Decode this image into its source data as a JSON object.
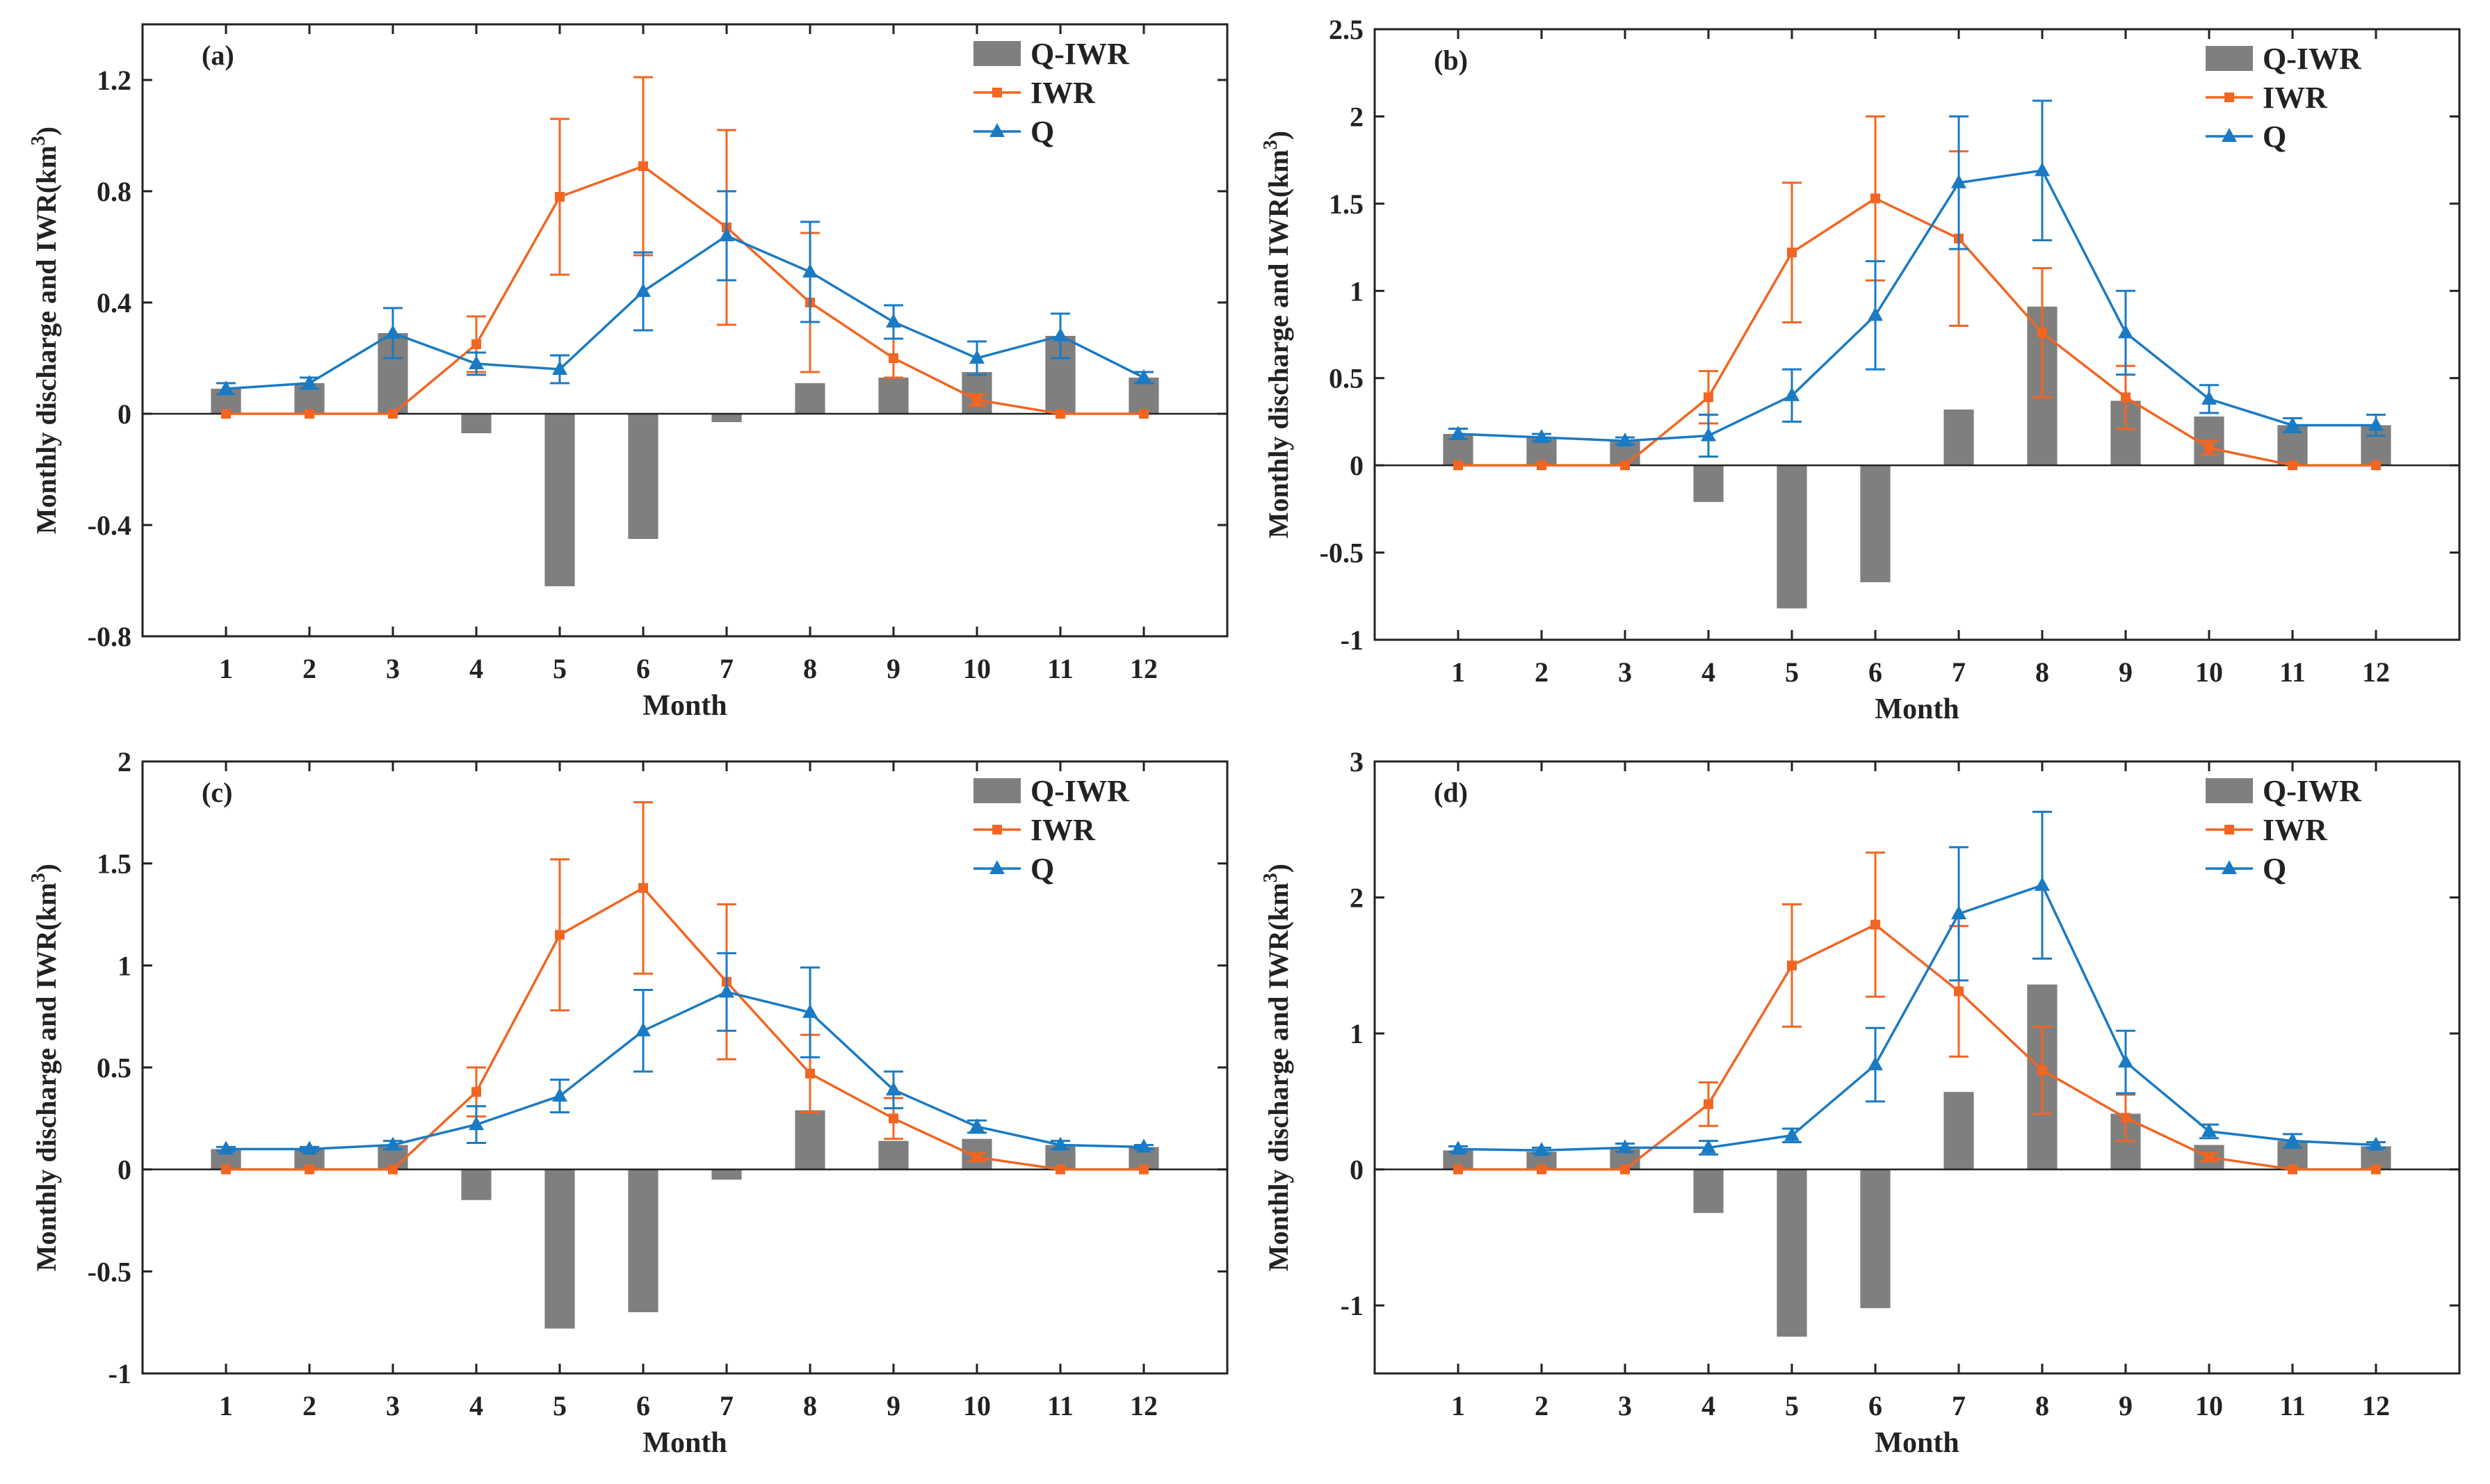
{
  "figure": {
    "colors": {
      "bar": "#7f7f7f",
      "iwr": "#f26522",
      "q": "#1a7ac3",
      "axis": "#222222"
    },
    "series_names": {
      "bar": "Q-IWR",
      "iwr": "IWR",
      "q": "Q"
    }
  },
  "chart_data": [
    {
      "type": "bar+line",
      "panel_label": "(a)",
      "xlabel": "Month",
      "ylabel": "Monthly discharge and IWR(km",
      "ylabel_sup": "3",
      "ylabel_end": ")",
      "categories": [
        "1",
        "2",
        "3",
        "4",
        "5",
        "6",
        "7",
        "8",
        "9",
        "10",
        "11",
        "12"
      ],
      "ylim": [
        -0.8,
        1.4
      ],
      "yticks": [
        -0.8,
        -0.4,
        0,
        0.4,
        0.8,
        1.2
      ],
      "ytick_labels": [
        "-0.8",
        "-0.4",
        "0",
        "0.4",
        "0.8",
        "1.2"
      ],
      "legend": [
        "Q-IWR",
        "IWR",
        "Q"
      ],
      "series": [
        {
          "name": "Q-IWR",
          "kind": "bar",
          "values": [
            0.09,
            0.11,
            0.29,
            -0.07,
            -0.62,
            -0.45,
            -0.03,
            0.11,
            0.13,
            0.15,
            0.28,
            0.13
          ]
        },
        {
          "name": "IWR",
          "kind": "line",
          "values": [
            0,
            0,
            0,
            0.25,
            0.78,
            0.89,
            0.67,
            0.4,
            0.2,
            0.05,
            0,
            0
          ],
          "err": [
            0,
            0,
            0,
            0.1,
            0.28,
            0.32,
            0.35,
            0.25,
            0.07,
            0.02,
            0,
            0
          ]
        },
        {
          "name": "Q",
          "kind": "line",
          "values": [
            0.09,
            0.11,
            0.29,
            0.18,
            0.16,
            0.44,
            0.64,
            0.51,
            0.33,
            0.2,
            0.28,
            0.13
          ],
          "err": [
            0.02,
            0.02,
            0.09,
            0.04,
            0.05,
            0.14,
            0.16,
            0.18,
            0.06,
            0.06,
            0.08,
            0.02
          ]
        }
      ]
    },
    {
      "type": "bar+line",
      "panel_label": "(b)",
      "xlabel": "Month",
      "ylabel": "Monthly discharge and IWR(km",
      "ylabel_sup": "3",
      "ylabel_end": ")",
      "categories": [
        "1",
        "2",
        "3",
        "4",
        "5",
        "6",
        "7",
        "8",
        "9",
        "10",
        "11",
        "12"
      ],
      "ylim": [
        -1,
        2.5
      ],
      "yticks": [
        -1,
        -0.5,
        0,
        0.5,
        1,
        1.5,
        2,
        2.5
      ],
      "ytick_labels": [
        "-1",
        "-0.5",
        "0",
        "0.5",
        "1",
        "1.5",
        "2",
        "2.5"
      ],
      "legend": [
        "Q-IWR",
        "IWR",
        "Q"
      ],
      "series": [
        {
          "name": "Q-IWR",
          "kind": "bar",
          "values": [
            0.18,
            0.16,
            0.14,
            -0.21,
            -0.82,
            -0.67,
            0.32,
            0.91,
            0.37,
            0.28,
            0.23,
            0.23
          ]
        },
        {
          "name": "IWR",
          "kind": "line",
          "values": [
            0,
            0,
            0,
            0.39,
            1.22,
            1.53,
            1.3,
            0.76,
            0.39,
            0.1,
            0,
            0
          ],
          "err": [
            0,
            0,
            0,
            0.15,
            0.4,
            0.47,
            0.5,
            0.37,
            0.18,
            0.04,
            0,
            0
          ]
        },
        {
          "name": "Q",
          "kind": "line",
          "values": [
            0.18,
            0.16,
            0.14,
            0.17,
            0.4,
            0.86,
            1.62,
            1.69,
            0.76,
            0.38,
            0.23,
            0.23
          ],
          "err": [
            0.03,
            0.02,
            0.02,
            0.12,
            0.15,
            0.31,
            0.38,
            0.4,
            0.24,
            0.08,
            0.04,
            0.06
          ]
        }
      ]
    },
    {
      "type": "bar+line",
      "panel_label": "(c)",
      "xlabel": "Month",
      "ylabel": "Monthly discharge and IWR(km",
      "ylabel_sup": "3",
      "ylabel_end": ")",
      "categories": [
        "1",
        "2",
        "3",
        "4",
        "5",
        "6",
        "7",
        "8",
        "9",
        "10",
        "11",
        "12"
      ],
      "ylim": [
        -1,
        2
      ],
      "yticks": [
        -1,
        -0.5,
        0,
        0.5,
        1,
        1.5,
        2
      ],
      "ytick_labels": [
        "-1",
        "-0.5",
        "0",
        "0.5",
        "1",
        "1.5",
        "2"
      ],
      "legend": [
        "Q-IWR",
        "IWR",
        "Q"
      ],
      "series": [
        {
          "name": "Q-IWR",
          "kind": "bar",
          "values": [
            0.1,
            0.1,
            0.12,
            -0.15,
            -0.78,
            -0.7,
            -0.05,
            0.29,
            0.14,
            0.15,
            0.12,
            0.11
          ]
        },
        {
          "name": "IWR",
          "kind": "line",
          "values": [
            0,
            0,
            0,
            0.38,
            1.15,
            1.38,
            0.92,
            0.47,
            0.25,
            0.06,
            0,
            0
          ],
          "err": [
            0,
            0,
            0,
            0.12,
            0.37,
            0.42,
            0.38,
            0.19,
            0.1,
            0.02,
            0,
            0
          ]
        },
        {
          "name": "Q",
          "kind": "line",
          "values": [
            0.1,
            0.1,
            0.12,
            0.22,
            0.36,
            0.68,
            0.87,
            0.77,
            0.39,
            0.21,
            0.12,
            0.11
          ],
          "err": [
            0.01,
            0.01,
            0.02,
            0.09,
            0.08,
            0.2,
            0.19,
            0.22,
            0.09,
            0.03,
            0.02,
            0.01
          ]
        }
      ]
    },
    {
      "type": "bar+line",
      "panel_label": "(d)",
      "xlabel": "Month",
      "ylabel": "Monthly discharge and IWR(km",
      "ylabel_sup": "3",
      "ylabel_end": ")",
      "categories": [
        "1",
        "2",
        "3",
        "4",
        "5",
        "6",
        "7",
        "8",
        "9",
        "10",
        "11",
        "12"
      ],
      "ylim": [
        -1.5,
        3
      ],
      "yticks": [
        -1,
        0,
        1,
        2,
        3
      ],
      "ytick_labels": [
        "-1",
        "0",
        "1",
        "2",
        "3"
      ],
      "legend": [
        "Q-IWR",
        "IWR",
        "Q"
      ],
      "series": [
        {
          "name": "Q-IWR",
          "kind": "bar",
          "values": [
            0.14,
            0.13,
            0.15,
            -0.32,
            -1.23,
            -1.02,
            0.57,
            1.36,
            0.41,
            0.18,
            0.21,
            0.17
          ]
        },
        {
          "name": "IWR",
          "kind": "line",
          "values": [
            0,
            0,
            0,
            0.48,
            1.5,
            1.8,
            1.31,
            0.73,
            0.38,
            0.09,
            0,
            0
          ],
          "err": [
            0,
            0,
            0,
            0.16,
            0.45,
            0.53,
            0.48,
            0.32,
            0.17,
            0.03,
            0,
            0
          ]
        },
        {
          "name": "Q",
          "kind": "line",
          "values": [
            0.15,
            0.14,
            0.16,
            0.16,
            0.25,
            0.77,
            1.88,
            2.09,
            0.79,
            0.28,
            0.21,
            0.18
          ],
          "err": [
            0.02,
            0.02,
            0.03,
            0.05,
            0.05,
            0.27,
            0.49,
            0.54,
            0.23,
            0.05,
            0.05,
            0.02
          ]
        }
      ]
    }
  ]
}
